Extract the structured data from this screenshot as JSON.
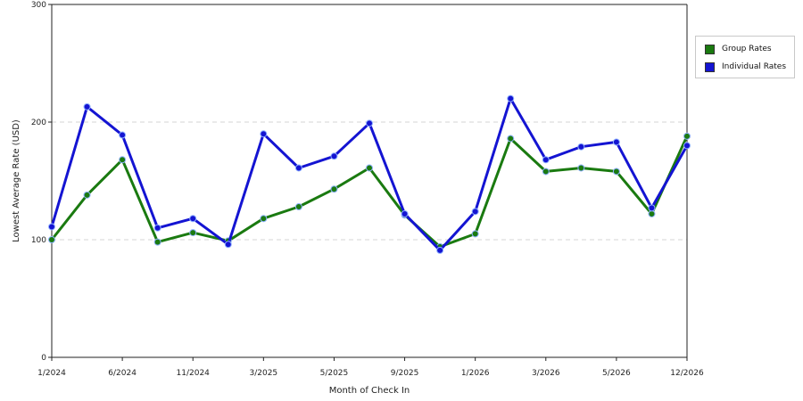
{
  "chart_data": {
    "type": "line",
    "title": "",
    "xlabel": "Month of Check In",
    "ylabel": "Lowest Average Rate (USD)",
    "ylim": [
      0,
      300
    ],
    "yticks": [
      0,
      100,
      200,
      300
    ],
    "grid": "horizontal dashed",
    "legend_position": "right",
    "x_tick_labels": [
      "1/2024",
      "6/2024",
      "11/2024",
      "3/2025",
      "5/2025",
      "9/2025",
      "1/2026",
      "3/2026",
      "5/2026",
      "12/2026"
    ],
    "series": [
      {
        "name": "Group Rates",
        "color": "#1a7a10",
        "values": [
          100,
          138,
          168,
          98,
          106,
          99,
          118,
          128,
          143,
          161,
          121,
          94,
          105,
          186,
          158,
          161,
          158,
          122,
          188
        ]
      },
      {
        "name": "Individual Rates",
        "color": "#1414d2",
        "values": [
          111,
          213,
          189,
          110,
          118,
          96,
          190,
          161,
          171,
          199,
          122,
          91,
          124,
          220,
          168,
          179,
          183,
          127,
          180
        ]
      }
    ]
  }
}
